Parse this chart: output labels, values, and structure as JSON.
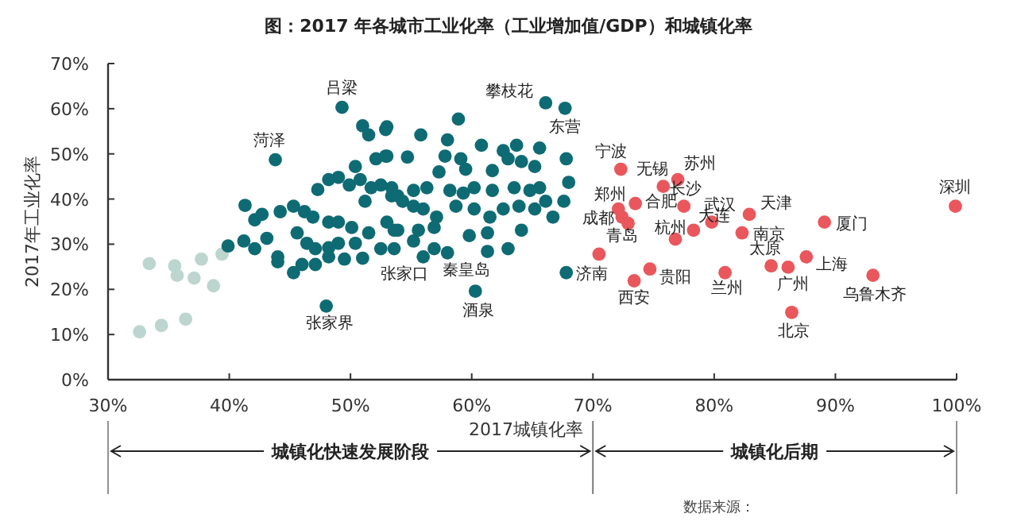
{
  "chart_data": {
    "type": "scatter",
    "title": "图：2017 年各城市工业化率（工业增加值/GDP）和城镇化率",
    "xlabel": "2017城镇化率",
    "ylabel": "2017年工业化率",
    "xlim": [
      30,
      100
    ],
    "xticks": [
      {
        "value": 30,
        "label": "30%"
      },
      {
        "value": 40,
        "label": "40%"
      },
      {
        "value": 50,
        "label": "50%"
      },
      {
        "value": 60,
        "label": "60%"
      },
      {
        "value": 70,
        "label": "70%"
      },
      {
        "value": 80,
        "label": "80%"
      },
      {
        "value": 90,
        "label": "90%"
      },
      {
        "value": 100,
        "label": "100%"
      }
    ],
    "ylim": [
      0,
      70
    ],
    "yticks": [
      {
        "value": 0,
        "label": "0%"
      },
      {
        "value": 10,
        "label": "10%"
      },
      {
        "value": 20,
        "label": "20%"
      },
      {
        "value": 30,
        "label": "30%"
      },
      {
        "value": 40,
        "label": "40%"
      },
      {
        "value": 50,
        "label": "50%"
      },
      {
        "value": 60,
        "label": "60%"
      },
      {
        "value": 70,
        "label": "70%"
      }
    ],
    "grid": false,
    "marker": "circle",
    "series": [
      {
        "color": "#bcd6cf",
        "x": [
          33.4,
          35.5,
          35.7,
          37.1,
          37.7,
          38.7,
          39.4,
          32.6,
          34.4,
          36.4
        ],
        "values": [
          25.7,
          25.2,
          23.1,
          22.5,
          26.7,
          20.8,
          27.8,
          10.6,
          12.0,
          13.4
        ]
      },
      {
        "color": "#0f6b73",
        "x": [
          49.3,
          43.8,
          48.0,
          66.1,
          67.7,
          56.0,
          58.0,
          60.3,
          67.8,
          51.0,
          51.5,
          52.9,
          52.1,
          52.9,
          54.7,
          50.4,
          47.3,
          48.2,
          49.0,
          49.9,
          50.8,
          51.7,
          52.5,
          51.2,
          53.4,
          54.3,
          41.3,
          42.1,
          42.7,
          44.2,
          45.3,
          46.2,
          46.9,
          48.2,
          49.0,
          50.1,
          51.5,
          53.6,
          39.9,
          41.2,
          42.1,
          43.1,
          44.0,
          45.3,
          45.6,
          46.4,
          47.1,
          48.2,
          49.0,
          50.4,
          52.5,
          44.0,
          46.0,
          47.1,
          48.2,
          49.5,
          51.0,
          53.0,
          55.8,
          58.9,
          58.0,
          53.0,
          57.8,
          60.8,
          62.6,
          63.7,
          65.6,
          67.8,
          57.3,
          59.1,
          59.5,
          61.7,
          63.0,
          64.1,
          65.2,
          68.0,
          53.4,
          53.9,
          55.2,
          56.3,
          58.2,
          59.3,
          60.2,
          61.7,
          63.5,
          64.8,
          65.6,
          66.1,
          67.6,
          55.2,
          56.0,
          57.1,
          58.7,
          60.2,
          61.5,
          62.6,
          63.9,
          65.2,
          66.7,
          53.0,
          53.9,
          55.6,
          56.9,
          59.8,
          61.3,
          64.1,
          61.3,
          63.0,
          53.6,
          56.9,
          55.2
        ],
        "values": [
          60.3,
          48.7,
          16.3,
          61.3,
          60.1,
          27.2,
          28.1,
          19.6,
          23.7,
          56.2,
          54.2,
          55.4,
          48.9,
          49.5,
          49.3,
          47.2,
          42.1,
          44.3,
          44.8,
          43.1,
          44.3,
          42.5,
          43.1,
          39.5,
          40.7,
          39.5,
          38.6,
          35.4,
          36.6,
          37.2,
          38.4,
          37.2,
          36.0,
          34.9,
          34.9,
          33.7,
          32.5,
          33.1,
          29.6,
          30.7,
          29.0,
          31.3,
          27.2,
          23.7,
          32.5,
          30.2,
          29.0,
          29.2,
          30.2,
          30.2,
          29.0,
          26.1,
          25.5,
          25.5,
          27.2,
          26.7,
          26.9,
          56.0,
          54.2,
          57.7,
          53.1,
          49.5,
          49.5,
          51.9,
          50.7,
          51.9,
          51.3,
          48.9,
          46.0,
          48.9,
          46.6,
          46.3,
          48.9,
          48.3,
          47.2,
          43.7,
          42.5,
          40.7,
          41.9,
          42.5,
          41.9,
          41.3,
          42.5,
          41.9,
          42.5,
          41.9,
          42.5,
          39.5,
          39.5,
          38.4,
          37.8,
          36.0,
          38.4,
          37.8,
          36.0,
          37.8,
          38.4,
          37.8,
          36.0,
          34.9,
          33.1,
          33.1,
          33.7,
          31.9,
          32.5,
          33.1,
          28.4,
          29.0,
          29.0,
          29.0,
          30.7
        ]
      },
      {
        "color": "#e9575c",
        "x": [
          72.3,
          75.8,
          77.0,
          77.5,
          73.5,
          72.1,
          72.4,
          72.9,
          76.8,
          78.3,
          79.8,
          82.9,
          82.3,
          89.1,
          99.9,
          70.5,
          73.4,
          74.7,
          80.9,
          84.7,
          86.1,
          87.6,
          93.1,
          86.4
        ],
        "values": [
          46.6,
          42.8,
          44.3,
          38.4,
          39.0,
          37.8,
          36.0,
          34.6,
          31.1,
          33.1,
          34.9,
          36.6,
          32.5,
          34.9,
          38.4,
          27.8,
          21.9,
          24.5,
          23.7,
          25.2,
          24.9,
          27.2,
          23.1,
          14.9
        ]
      }
    ],
    "annotations": [
      {
        "text": "吕梁",
        "x": 49.3,
        "y": 60.3
      },
      {
        "text": "菏泽",
        "x": 43.8,
        "y": 48.7
      },
      {
        "text": "张家界",
        "x": 48.0,
        "y": 16.3
      },
      {
        "text": "攀枝花",
        "x": 66.1,
        "y": 61.3
      },
      {
        "text": "东营",
        "x": 67.7,
        "y": 60.1
      },
      {
        "text": "张家口",
        "x": 56.0,
        "y": 27.2
      },
      {
        "text": "秦皇岛",
        "x": 58.0,
        "y": 28.1
      },
      {
        "text": "酒泉",
        "x": 60.3,
        "y": 19.6
      },
      {
        "text": "济南",
        "x": 67.8,
        "y": 23.7
      },
      {
        "text": "宁波",
        "x": 72.3,
        "y": 46.6
      },
      {
        "text": "无锡",
        "x": 75.8,
        "y": 42.8
      },
      {
        "text": "苏州",
        "x": 77.0,
        "y": 44.3
      },
      {
        "text": "长沙",
        "x": 77.5,
        "y": 38.4
      },
      {
        "text": "合肥",
        "x": 73.5,
        "y": 39.0
      },
      {
        "text": "郑州",
        "x": 72.1,
        "y": 37.8
      },
      {
        "text": "成都",
        "x": 72.4,
        "y": 36.0
      },
      {
        "text": "青岛",
        "x": 72.9,
        "y": 34.6
      },
      {
        "text": "杭州",
        "x": 76.8,
        "y": 31.1
      },
      {
        "text": "大连",
        "x": 78.3,
        "y": 33.1
      },
      {
        "text": "武汉",
        "x": 79.8,
        "y": 34.9
      },
      {
        "text": "天津",
        "x": 82.9,
        "y": 36.6
      },
      {
        "text": "南京",
        "x": 82.3,
        "y": 32.5
      },
      {
        "text": "厦门",
        "x": 89.1,
        "y": 34.9
      },
      {
        "text": "深圳",
        "x": 99.9,
        "y": 38.4
      },
      {
        "text": "西安",
        "x": 73.4,
        "y": 21.9
      },
      {
        "text": "贵阳",
        "x": 74.7,
        "y": 24.5
      },
      {
        "text": "兰州",
        "x": 80.9,
        "y": 23.7
      },
      {
        "text": "太原",
        "x": 84.7,
        "y": 25.2
      },
      {
        "text": "广州",
        "x": 86.1,
        "y": 24.9
      },
      {
        "text": "上海",
        "x": 87.6,
        "y": 27.2
      },
      {
        "text": "乌鲁木齐",
        "x": 93.1,
        "y": 23.1
      },
      {
        "text": "北京",
        "x": 86.4,
        "y": 14.9
      },
      "城镇化快速发展阶段",
      "城镇化后期",
      "数据来源："
    ]
  }
}
